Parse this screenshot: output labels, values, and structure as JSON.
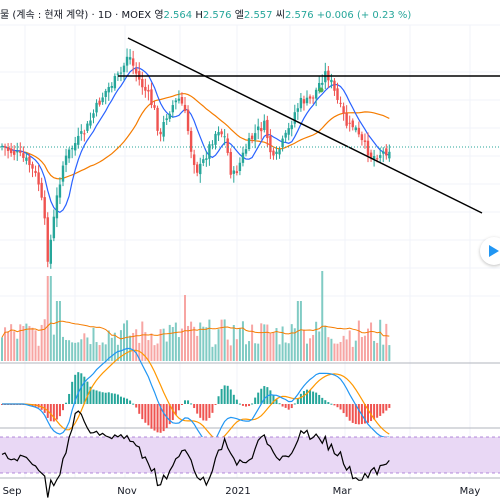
{
  "legend": {
    "symbol_title": "물 (계속 : 현재 계약)",
    "interval": "1D",
    "exchange": "MOEX",
    "open_label": "영",
    "open_value": "2.564",
    "high_label": "H",
    "high_value": "2.576",
    "low_label": "엘",
    "low_value": "2.557",
    "close_label": "씨",
    "close_value": "2.576",
    "change": "+0.006 (+ 0.23 %)"
  },
  "colors": {
    "up": "#26a69a",
    "down": "#ef5350",
    "ma_fast": "#2962ff",
    "ma_slow": "#f57c00",
    "macd": "#2196f3",
    "signal": "#ff9800",
    "rsi_line": "#000000",
    "rsi_band": "#e9d8f5",
    "trendline": "#000000",
    "dotted_price": "#26a69a"
  },
  "chart_data": {
    "type": "candlestick",
    "x_tick_labels": [
      "Sep",
      "Nov",
      "2021",
      "Mar",
      "May"
    ],
    "grid": true,
    "panes": [
      "price",
      "volume",
      "macd",
      "rsi"
    ]
  },
  "nav": {
    "icon": "chevron-right-icon"
  }
}
